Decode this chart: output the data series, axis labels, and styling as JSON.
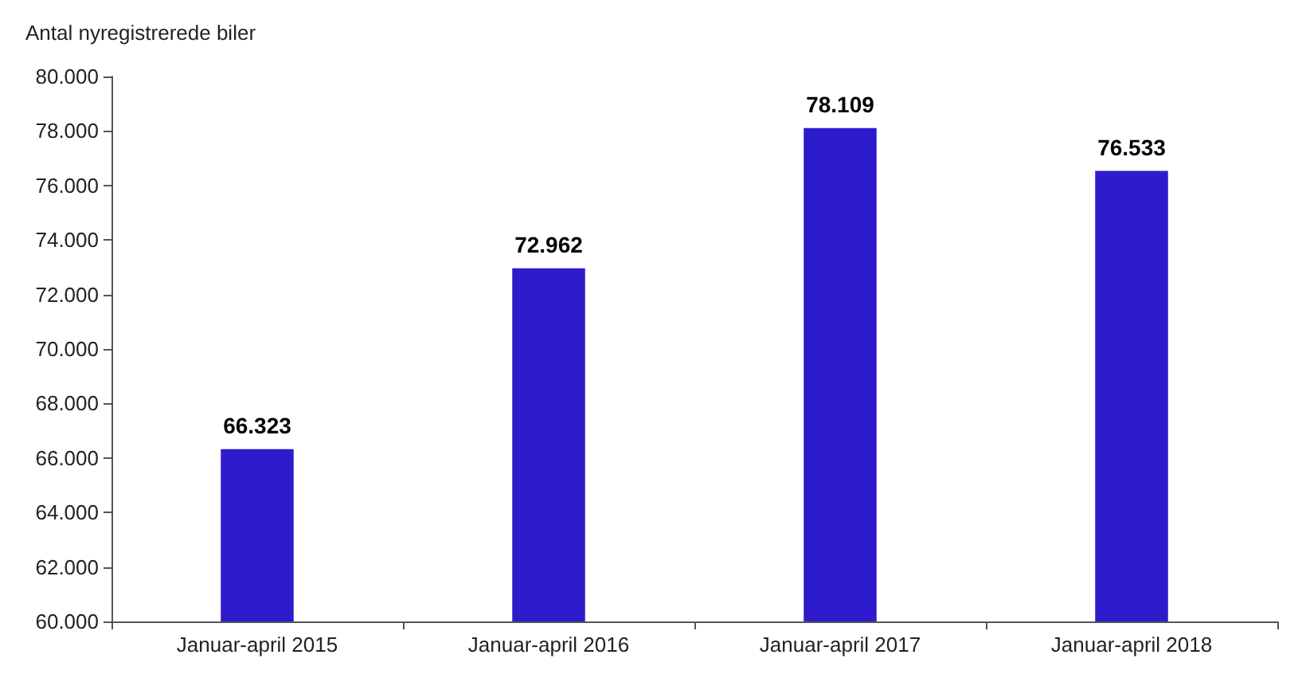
{
  "chart_data": {
    "type": "bar",
    "ylabel": "Antal nyregistrerede biler",
    "categories": [
      "Januar-april 2015",
      "Januar-april 2016",
      "Januar-april 2017",
      "Januar-april 2018"
    ],
    "values": [
      66323,
      72962,
      78109,
      76533
    ],
    "value_labels": [
      "66.323",
      "72.962",
      "78.109",
      "76.533"
    ],
    "color": "#2e1bcc",
    "ylim": [
      60000,
      80000
    ],
    "yticks": [
      {
        "value": 60000,
        "label": "60.000"
      },
      {
        "value": 62000,
        "label": "62.000"
      },
      {
        "value": 64000,
        "label": "64.000"
      },
      {
        "value": 66000,
        "label": "66.000"
      },
      {
        "value": 68000,
        "label": "68.000"
      },
      {
        "value": 70000,
        "label": "70.000"
      },
      {
        "value": 72000,
        "label": "72.000"
      },
      {
        "value": 74000,
        "label": "74.000"
      },
      {
        "value": 76000,
        "label": "76.000"
      },
      {
        "value": 78000,
        "label": "78.000"
      },
      {
        "value": 80000,
        "label": "80.000"
      }
    ],
    "grid": false
  }
}
